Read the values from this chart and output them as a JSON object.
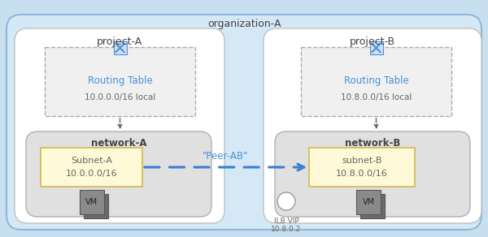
{
  "fig_w": 6.0,
  "fig_h": 2.92,
  "dpi": 100,
  "bg_color": "#c8dff0",
  "org_label": "organization-A",
  "project_A_label": "project-A",
  "project_B_label": "project-B",
  "network_A_label": "network-A",
  "network_B_label": "network-B",
  "routing_A_label": "Routing Table",
  "routing_A_sub": "10.0.0.0/16 local",
  "routing_B_label": "Routing Table",
  "routing_B_sub": "10.8.0.0/16 local",
  "subnet_A_line1": "Subnet-A",
  "subnet_A_line2": "10.0.0.0/16",
  "subnet_B_line1": "subnet-B",
  "subnet_B_line2": "10.8.0.0/16",
  "vm_label": "VM",
  "peer_label": "\"Peer-AB\"",
  "ilb_label": "ILB VIP\n10.8.0.2",
  "blue": "#4a90d9",
  "blue_light": "#c5d9ee",
  "gray_net": "#e0e0e0",
  "gray_net_edge": "#b0b0b0",
  "white": "#ffffff",
  "white_edge": "#c0c0c0",
  "routing_bg": "#f0f0f0",
  "routing_edge": "#aaaaaa",
  "subnet_bg": "#fef9d7",
  "subnet_edge": "#d4b84a",
  "vm_dark": "#6b6b6b",
  "vm_light": "#8a8a8a",
  "vm_edge": "#555555",
  "text_dark": "#444444",
  "text_blue": "#4a90d9",
  "text_gray": "#666666",
  "arrow_color": "#3a7fd4",
  "dashed_color": "#888888"
}
